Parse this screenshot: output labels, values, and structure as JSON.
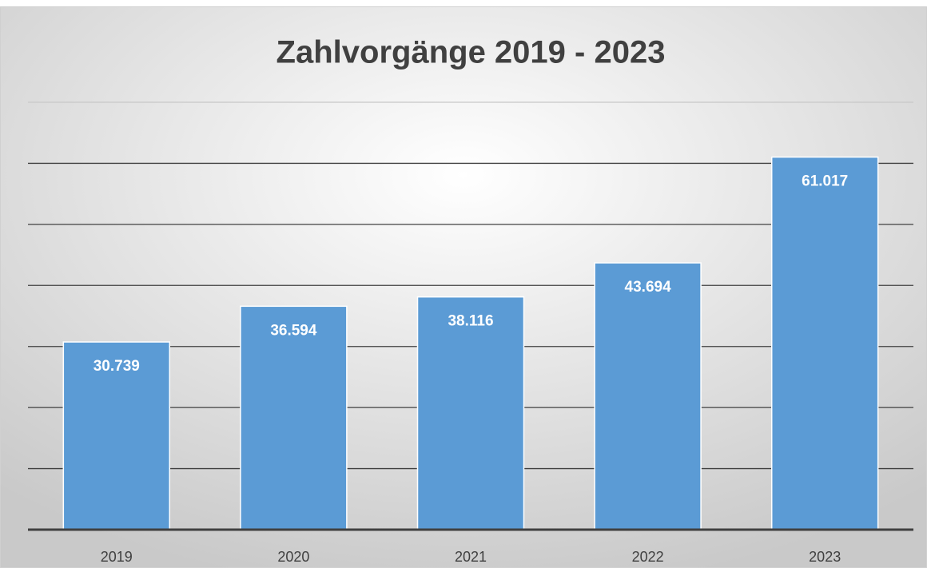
{
  "chart_data": {
    "type": "bar",
    "title": "Zahlvorgänge 2019 - 2023",
    "categories": [
      "2019",
      "2020",
      "2021",
      "2022",
      "2023"
    ],
    "values": [
      30739,
      36594,
      38116,
      43694,
      61017
    ],
    "value_labels": [
      "30.739",
      "36.594",
      "38.116",
      "43.694",
      "61.017"
    ],
    "color": "#5b9bd5",
    "ylim": [
      0,
      70000
    ],
    "yticks": [
      0,
      10000,
      20000,
      30000,
      40000,
      50000,
      60000,
      70000
    ],
    "grid": true
  }
}
